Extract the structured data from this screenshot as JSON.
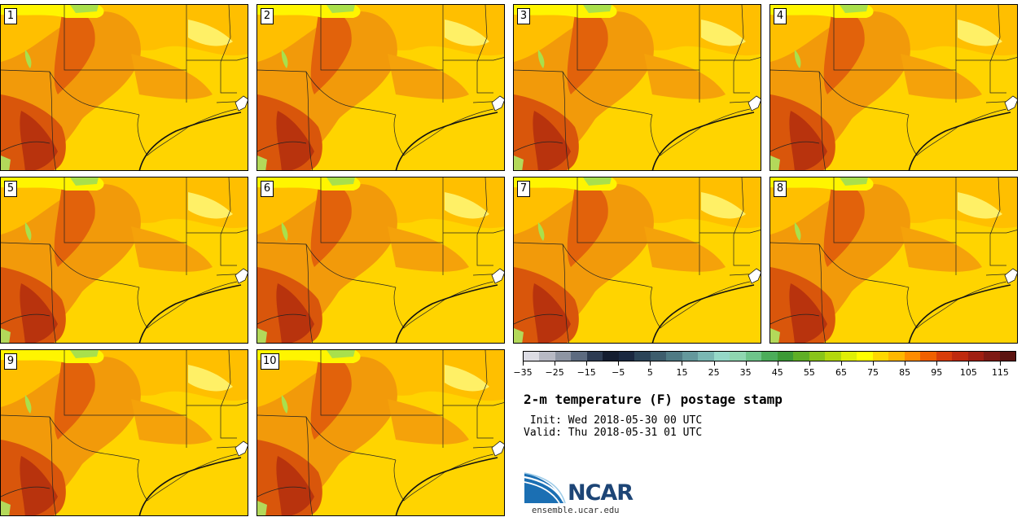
{
  "panels": [
    {
      "label": "1"
    },
    {
      "label": "2"
    },
    {
      "label": "3"
    },
    {
      "label": "4"
    },
    {
      "label": "5"
    },
    {
      "label": "6"
    },
    {
      "label": "7"
    },
    {
      "label": "8"
    },
    {
      "label": "9"
    },
    {
      "label": "10"
    }
  ],
  "colorbar": {
    "colors": [
      "#dcdce4",
      "#b7b9c4",
      "#8e95a3",
      "#5d6b80",
      "#2d3b52",
      "#141d30",
      "#1a2840",
      "#2b4458",
      "#3d5d6d",
      "#4f7a84",
      "#64989c",
      "#7ab7b3",
      "#95d8c8",
      "#8fd6b0",
      "#6ec48a",
      "#4cad5a",
      "#3c9a36",
      "#5faf26",
      "#89c41a",
      "#b3d80d",
      "#dfee06",
      "#ffff00",
      "#ffd700",
      "#ffb700",
      "#ff8c00",
      "#f06000",
      "#d83d0a",
      "#bf2a0e",
      "#a01f12",
      "#7e1a14",
      "#5c1410"
    ],
    "tick_labels": [
      "−35",
      "−25",
      "−15",
      "−5",
      "5",
      "15",
      "25",
      "35",
      "45",
      "55",
      "65",
      "75",
      "85",
      "95",
      "105",
      "115"
    ]
  },
  "title": "2-m temperature (F) postage stamp",
  "init": " Init: Wed 2018-05-30 00 UTC",
  "valid": "Valid: Thu 2018-05-31 01 UTC",
  "logo": {
    "text": "NCAR",
    "url": "ensemble.ucar.edu"
  }
}
